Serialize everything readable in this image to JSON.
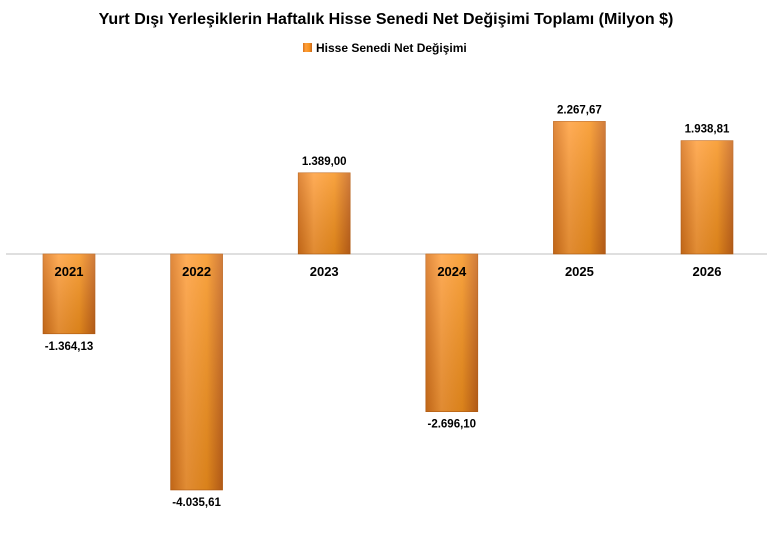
{
  "chart_data": {
    "type": "bar",
    "title": "Yurt Dışı Yerleşiklerin Haftalık Hisse Senedi Net Değişimi Toplamı (Milyon $)",
    "categories": [
      "2021",
      "2022",
      "2023",
      "2024",
      "2025",
      "2026"
    ],
    "series": [
      {
        "name": "Hisse Senedi Net Değişimi",
        "values": [
          -1364.13,
          -4035.61,
          1389.0,
          -2696.1,
          2267.67,
          1938.81
        ],
        "labels": [
          "-1.364,13",
          "-4.035,61",
          "1.389,00",
          "-2.696,10",
          "2.267,67",
          "1.938,81"
        ]
      }
    ],
    "legend_position": "top",
    "grid": false,
    "bar_color": "#F7931E",
    "axis_color": "#BFBFBF"
  }
}
